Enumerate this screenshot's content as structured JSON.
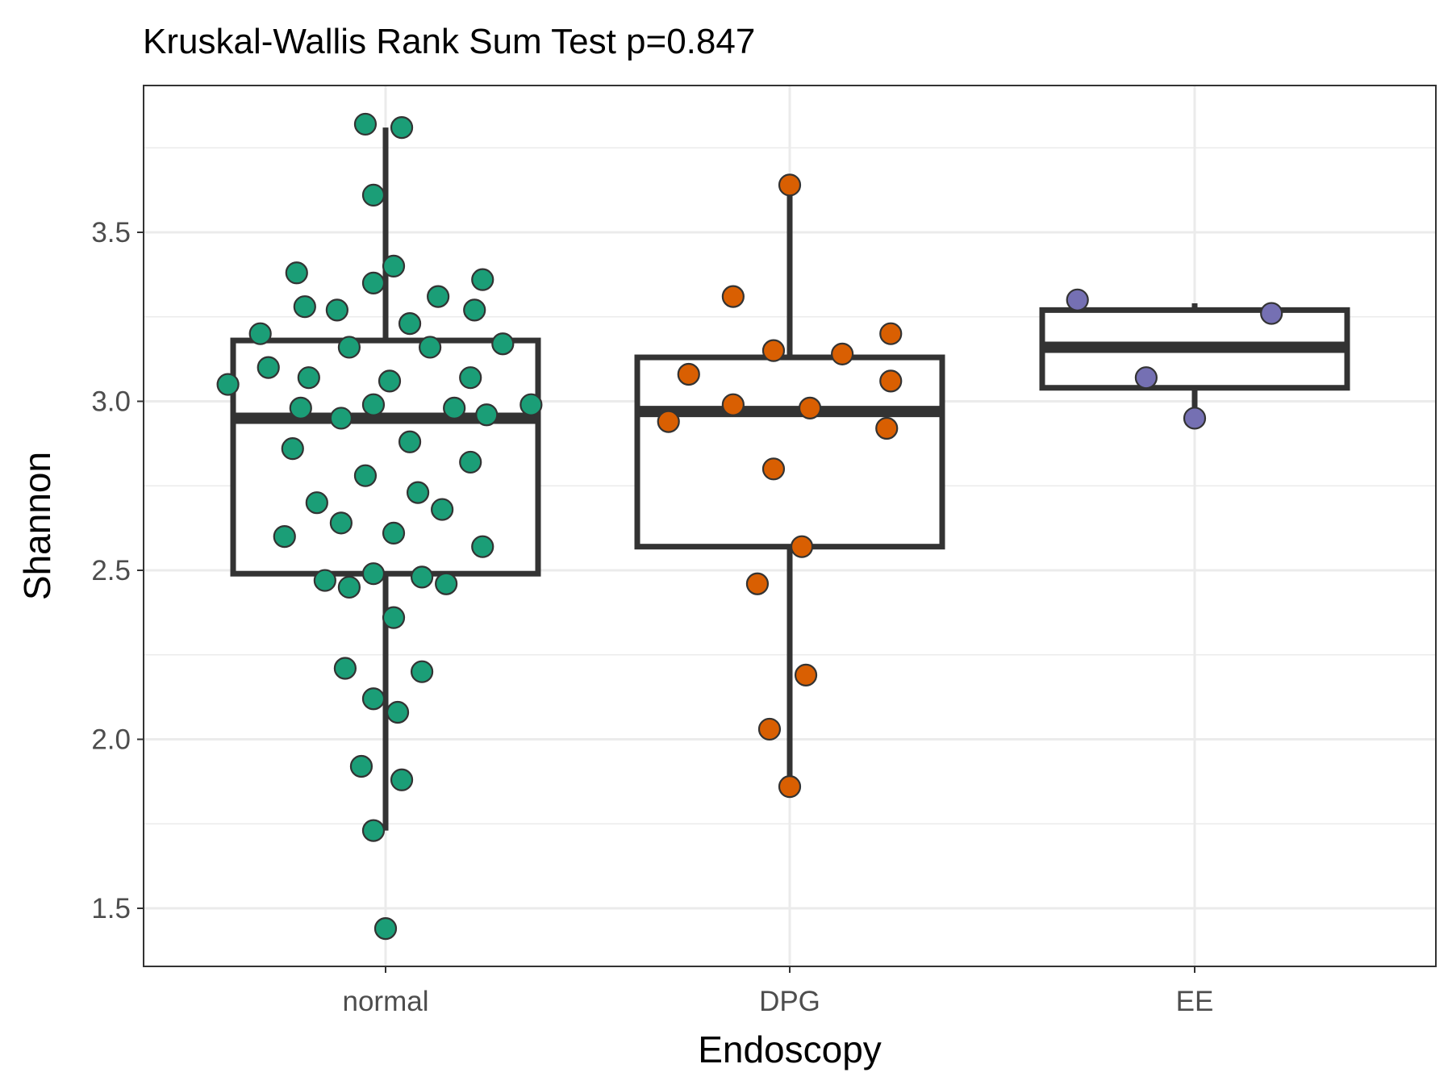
{
  "chart_data": {
    "type": "boxplot",
    "title": "Kruskal-Wallis Rank Sum Test p=0.847",
    "xlabel": "Endoscopy",
    "ylabel": "Shannon",
    "ylim": [
      1.33,
      3.9
    ],
    "yticks": [
      "1.5",
      "2.0",
      "2.5",
      "3.0",
      "3.5"
    ],
    "grid": true,
    "categories": [
      "normal",
      "DPG",
      "EE"
    ],
    "colors": {
      "normal": "#1b9e77",
      "DPG": "#d95f02",
      "EE": "#7570b3",
      "box": "#333333",
      "grid": "#ebebeb",
      "panel_border": "#333333"
    },
    "boxes": [
      {
        "category": "normal",
        "whisker_low": 1.73,
        "q1": 2.49,
        "median": 2.95,
        "q3": 3.18,
        "whisker_high": 3.81
      },
      {
        "category": "DPG",
        "whisker_low": 1.86,
        "q1": 2.57,
        "median": 2.97,
        "q3": 3.13,
        "whisker_high": 3.63
      },
      {
        "category": "EE",
        "whisker_low": 2.95,
        "q1": 3.04,
        "median": 3.16,
        "q3": 3.27,
        "whisker_high": 3.29
      }
    ],
    "points": [
      {
        "category": "normal",
        "jitter": -0.05,
        "y": 3.82
      },
      {
        "category": "normal",
        "jitter": 0.04,
        "y": 3.81
      },
      {
        "category": "normal",
        "jitter": -0.03,
        "y": 3.61
      },
      {
        "category": "normal",
        "jitter": 0.02,
        "y": 3.4
      },
      {
        "category": "normal",
        "jitter": -0.22,
        "y": 3.38
      },
      {
        "category": "normal",
        "jitter": 0.24,
        "y": 3.36
      },
      {
        "category": "normal",
        "jitter": -0.03,
        "y": 3.35
      },
      {
        "category": "normal",
        "jitter": 0.13,
        "y": 3.31
      },
      {
        "category": "normal",
        "jitter": -0.2,
        "y": 3.28
      },
      {
        "category": "normal",
        "jitter": -0.12,
        "y": 3.27
      },
      {
        "category": "normal",
        "jitter": 0.22,
        "y": 3.27
      },
      {
        "category": "normal",
        "jitter": 0.06,
        "y": 3.23
      },
      {
        "category": "normal",
        "jitter": -0.31,
        "y": 3.2
      },
      {
        "category": "normal",
        "jitter": 0.29,
        "y": 3.17
      },
      {
        "category": "normal",
        "jitter": -0.09,
        "y": 3.16
      },
      {
        "category": "normal",
        "jitter": 0.11,
        "y": 3.16
      },
      {
        "category": "normal",
        "jitter": -0.29,
        "y": 3.1
      },
      {
        "category": "normal",
        "jitter": -0.19,
        "y": 3.07
      },
      {
        "category": "normal",
        "jitter": 0.21,
        "y": 3.07
      },
      {
        "category": "normal",
        "jitter": 0.01,
        "y": 3.06
      },
      {
        "category": "normal",
        "jitter": -0.39,
        "y": 3.05
      },
      {
        "category": "normal",
        "jitter": 0.36,
        "y": 2.99
      },
      {
        "category": "normal",
        "jitter": -0.03,
        "y": 2.99
      },
      {
        "category": "normal",
        "jitter": 0.17,
        "y": 2.98
      },
      {
        "category": "normal",
        "jitter": -0.21,
        "y": 2.98
      },
      {
        "category": "normal",
        "jitter": 0.25,
        "y": 2.96
      },
      {
        "category": "normal",
        "jitter": -0.11,
        "y": 2.95
      },
      {
        "category": "normal",
        "jitter": 0.06,
        "y": 2.88
      },
      {
        "category": "normal",
        "jitter": -0.23,
        "y": 2.86
      },
      {
        "category": "normal",
        "jitter": 0.21,
        "y": 2.82
      },
      {
        "category": "normal",
        "jitter": -0.05,
        "y": 2.78
      },
      {
        "category": "normal",
        "jitter": 0.08,
        "y": 2.73
      },
      {
        "category": "normal",
        "jitter": -0.17,
        "y": 2.7
      },
      {
        "category": "normal",
        "jitter": 0.14,
        "y": 2.68
      },
      {
        "category": "normal",
        "jitter": -0.11,
        "y": 2.64
      },
      {
        "category": "normal",
        "jitter": 0.02,
        "y": 2.61
      },
      {
        "category": "normal",
        "jitter": -0.25,
        "y": 2.6
      },
      {
        "category": "normal",
        "jitter": 0.24,
        "y": 2.57
      },
      {
        "category": "normal",
        "jitter": -0.03,
        "y": 2.49
      },
      {
        "category": "normal",
        "jitter": 0.09,
        "y": 2.48
      },
      {
        "category": "normal",
        "jitter": -0.15,
        "y": 2.47
      },
      {
        "category": "normal",
        "jitter": 0.15,
        "y": 2.46
      },
      {
        "category": "normal",
        "jitter": -0.09,
        "y": 2.45
      },
      {
        "category": "normal",
        "jitter": 0.02,
        "y": 2.36
      },
      {
        "category": "normal",
        "jitter": -0.1,
        "y": 2.21
      },
      {
        "category": "normal",
        "jitter": 0.09,
        "y": 2.2
      },
      {
        "category": "normal",
        "jitter": -0.03,
        "y": 2.12
      },
      {
        "category": "normal",
        "jitter": 0.03,
        "y": 2.08
      },
      {
        "category": "normal",
        "jitter": -0.06,
        "y": 1.92
      },
      {
        "category": "normal",
        "jitter": 0.04,
        "y": 1.88
      },
      {
        "category": "normal",
        "jitter": -0.03,
        "y": 1.73
      },
      {
        "category": "normal",
        "jitter": 0.0,
        "y": 1.44
      },
      {
        "category": "DPG",
        "jitter": 0.0,
        "y": 3.64
      },
      {
        "category": "DPG",
        "jitter": -0.14,
        "y": 3.31
      },
      {
        "category": "DPG",
        "jitter": 0.25,
        "y": 3.2
      },
      {
        "category": "DPG",
        "jitter": -0.04,
        "y": 3.15
      },
      {
        "category": "DPG",
        "jitter": 0.13,
        "y": 3.14
      },
      {
        "category": "DPG",
        "jitter": -0.25,
        "y": 3.08
      },
      {
        "category": "DPG",
        "jitter": 0.25,
        "y": 3.06
      },
      {
        "category": "DPG",
        "jitter": -0.14,
        "y": 2.99
      },
      {
        "category": "DPG",
        "jitter": 0.05,
        "y": 2.98
      },
      {
        "category": "DPG",
        "jitter": -0.3,
        "y": 2.94
      },
      {
        "category": "DPG",
        "jitter": 0.24,
        "y": 2.92
      },
      {
        "category": "DPG",
        "jitter": -0.04,
        "y": 2.8
      },
      {
        "category": "DPG",
        "jitter": 0.03,
        "y": 2.57
      },
      {
        "category": "DPG",
        "jitter": -0.08,
        "y": 2.46
      },
      {
        "category": "DPG",
        "jitter": 0.04,
        "y": 2.19
      },
      {
        "category": "DPG",
        "jitter": -0.05,
        "y": 2.03
      },
      {
        "category": "DPG",
        "jitter": 0.0,
        "y": 1.86
      },
      {
        "category": "EE",
        "jitter": -0.29,
        "y": 3.3
      },
      {
        "category": "EE",
        "jitter": 0.19,
        "y": 3.26
      },
      {
        "category": "EE",
        "jitter": -0.12,
        "y": 3.07
      },
      {
        "category": "EE",
        "jitter": 0.0,
        "y": 2.95
      }
    ]
  }
}
